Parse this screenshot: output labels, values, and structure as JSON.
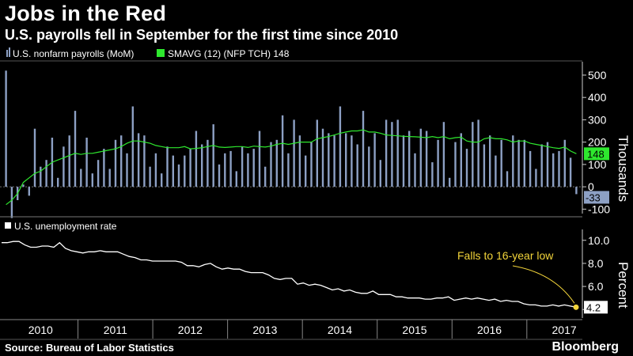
{
  "title": "Jobs in the Red",
  "subtitle": "U.S. payrolls fell in September for the first time since 2010",
  "source": "Source: Bureau of Labor Statistics",
  "brand": "Bloomberg",
  "colors": {
    "bars": "#8da0c4",
    "sma": "#2ee82e",
    "unemp": "#ffffff",
    "annotation": "#f2d43a",
    "gridline": "#6c6c6c"
  },
  "chart_data": [
    {
      "type": "bar",
      "ylabel": "Thousands",
      "ylim": [
        -120,
        560
      ],
      "yticks": [
        -100,
        0,
        100,
        200,
        300,
        400,
        500
      ],
      "legend_placement": "top-left",
      "series": [
        {
          "name": "U.S. nonfarm payrolls (MoM)",
          "type": "bar",
          "end_label": "-33",
          "values": [
            520,
            -140,
            -60,
            10,
            -40,
            260,
            90,
            120,
            220,
            40,
            180,
            230,
            340,
            80,
            220,
            60,
            120,
            170,
            80,
            210,
            230,
            150,
            360,
            240,
            230,
            90,
            150,
            60,
            180,
            140,
            100,
            140,
            170,
            250,
            190,
            210,
            280,
            100,
            150,
            160,
            70,
            180,
            150,
            170,
            250,
            90,
            200,
            210,
            320,
            150,
            300,
            230,
            140,
            200,
            300,
            260,
            240,
            230,
            360,
            240,
            230,
            190,
            340,
            180,
            240,
            120,
            300,
            290,
            300,
            230,
            250,
            150,
            260,
            250,
            110,
            210,
            290,
            40,
            200,
            240,
            170,
            290,
            300,
            190,
            230,
            140,
            210,
            70,
            230,
            210,
            210,
            160,
            80,
            190,
            200,
            150,
            160,
            210,
            130,
            -33
          ]
        },
        {
          "name": "SMAVG (12) (NFP TCH)",
          "type": "line",
          "end_label": "148",
          "values": [
            -80,
            -60,
            -30,
            20,
            40,
            60,
            70,
            90,
            110,
            120,
            130,
            140,
            150,
            145,
            150,
            150,
            155,
            160,
            165,
            170,
            180,
            195,
            205,
            205,
            200,
            195,
            185,
            180,
            175,
            175,
            175,
            180,
            170,
            172,
            175,
            180,
            185,
            178,
            176,
            178,
            180,
            180,
            176,
            182,
            180,
            178,
            182,
            190,
            195,
            190,
            195,
            200,
            200,
            200,
            215,
            220,
            225,
            232,
            240,
            245,
            250,
            250,
            255,
            245,
            245,
            240,
            232,
            230,
            228,
            226,
            225,
            224,
            222,
            220,
            225,
            220,
            225,
            215,
            220,
            222,
            205,
            200,
            200,
            215,
            220,
            215,
            215,
            210,
            200,
            205,
            205,
            195,
            190,
            185,
            180,
            175,
            172,
            178,
            160,
            148
          ]
        }
      ]
    },
    {
      "type": "line",
      "ylabel": "Percent",
      "ylim": [
        3.4,
        10.6
      ],
      "yticks": [
        4.0,
        6.0,
        8.0,
        10.0
      ],
      "ytick_labels": [
        "",
        "6.0",
        "8.0",
        "10.0"
      ],
      "legend_placement": "top-left",
      "series": [
        {
          "name": "U.S. unemployment rate",
          "end_label": "4.2",
          "values": [
            9.8,
            9.8,
            9.9,
            9.9,
            9.6,
            9.4,
            9.4,
            9.5,
            9.5,
            9.4,
            9.8,
            9.3,
            9.1,
            9.0,
            8.9,
            9.0,
            9.0,
            9.1,
            9.0,
            9.0,
            9.0,
            8.8,
            8.6,
            8.5,
            8.3,
            8.3,
            8.2,
            8.2,
            8.2,
            8.2,
            8.2,
            8.1,
            7.8,
            7.8,
            7.7,
            7.9,
            8.0,
            7.7,
            7.5,
            7.6,
            7.5,
            7.5,
            7.3,
            7.2,
            7.2,
            7.2,
            7.0,
            6.7,
            6.6,
            6.7,
            6.7,
            6.2,
            6.3,
            6.1,
            6.2,
            6.1,
            5.9,
            5.7,
            5.8,
            5.6,
            5.7,
            5.5,
            5.4,
            5.4,
            5.6,
            5.3,
            5.3,
            5.3,
            5.1,
            5.1,
            5.0,
            5.0,
            5.0,
            4.9,
            4.9,
            5.0,
            5.0,
            5.1,
            4.8,
            4.9,
            5.0,
            4.9,
            5.0,
            4.9,
            4.8,
            4.9,
            4.7,
            4.8,
            4.7,
            4.7,
            4.5,
            4.4,
            4.4,
            4.3,
            4.3,
            4.4,
            4.3,
            4.4,
            4.3,
            4.2
          ]
        }
      ],
      "annotation": {
        "text": "Falls to 16-year low"
      }
    }
  ],
  "x_axis": {
    "years": [
      "2010",
      "2011",
      "2012",
      "2013",
      "2014",
      "2015",
      "2016",
      "2017"
    ]
  }
}
